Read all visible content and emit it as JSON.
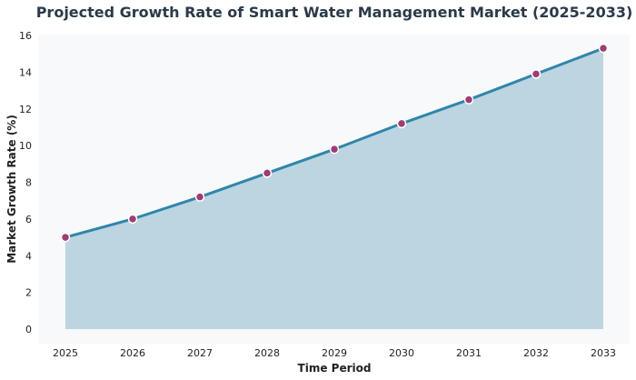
{
  "chart_data": {
    "type": "area",
    "title": "Projected Growth Rate of Smart Water Management Market (2025-2033)",
    "xlabel": "Time Period",
    "ylabel": "Market Growth Rate (%)",
    "categories": [
      "2025",
      "2026",
      "2027",
      "2028",
      "2029",
      "2030",
      "2031",
      "2032",
      "2033"
    ],
    "values": [
      5.0,
      6.0,
      7.2,
      8.5,
      9.8,
      11.2,
      12.5,
      13.9,
      15.3
    ],
    "ylim": [
      -0.8,
      16
    ],
    "yticks": [
      0,
      2,
      4,
      6,
      8,
      10,
      12,
      14,
      16
    ],
    "grid": false,
    "colors": {
      "line": "#2e86ab",
      "fill": "#bcd5e1",
      "marker": "#a23b72",
      "background": "#f8f9fa"
    }
  }
}
